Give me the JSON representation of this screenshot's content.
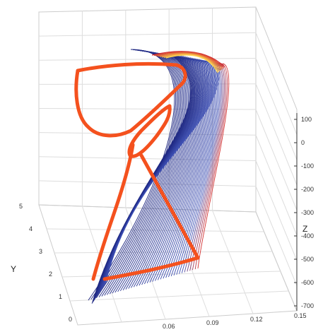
{
  "chart_data": {
    "type": "line",
    "projection": "3d",
    "axes": {
      "x": {
        "label": "",
        "ticks": [
          "0.06",
          "0.09",
          "0.12",
          "0.15"
        ],
        "range": [
          0.03,
          0.15
        ]
      },
      "y": {
        "label": "Y",
        "ticks": [
          "0",
          "1",
          "2",
          "3",
          "4",
          "5"
        ],
        "range": [
          0,
          5
        ]
      },
      "z": {
        "label": "Z",
        "ticks": [
          "100",
          "0",
          "-100",
          "-200",
          "-300",
          "-400",
          "-500",
          "-600",
          "-700"
        ],
        "range": [
          -700,
          100
        ]
      }
    },
    "grid": true,
    "legend": "none",
    "series_style": {
      "count": 42,
      "color_start": "#1a237e",
      "color_mid": "#3f51b5",
      "color_end": "#d32f2f",
      "highlight": "#ffd54f"
    },
    "annotation": {
      "description": "hand-drawn red loop outline overlaid on the curve family",
      "color": "#f4511e"
    }
  }
}
